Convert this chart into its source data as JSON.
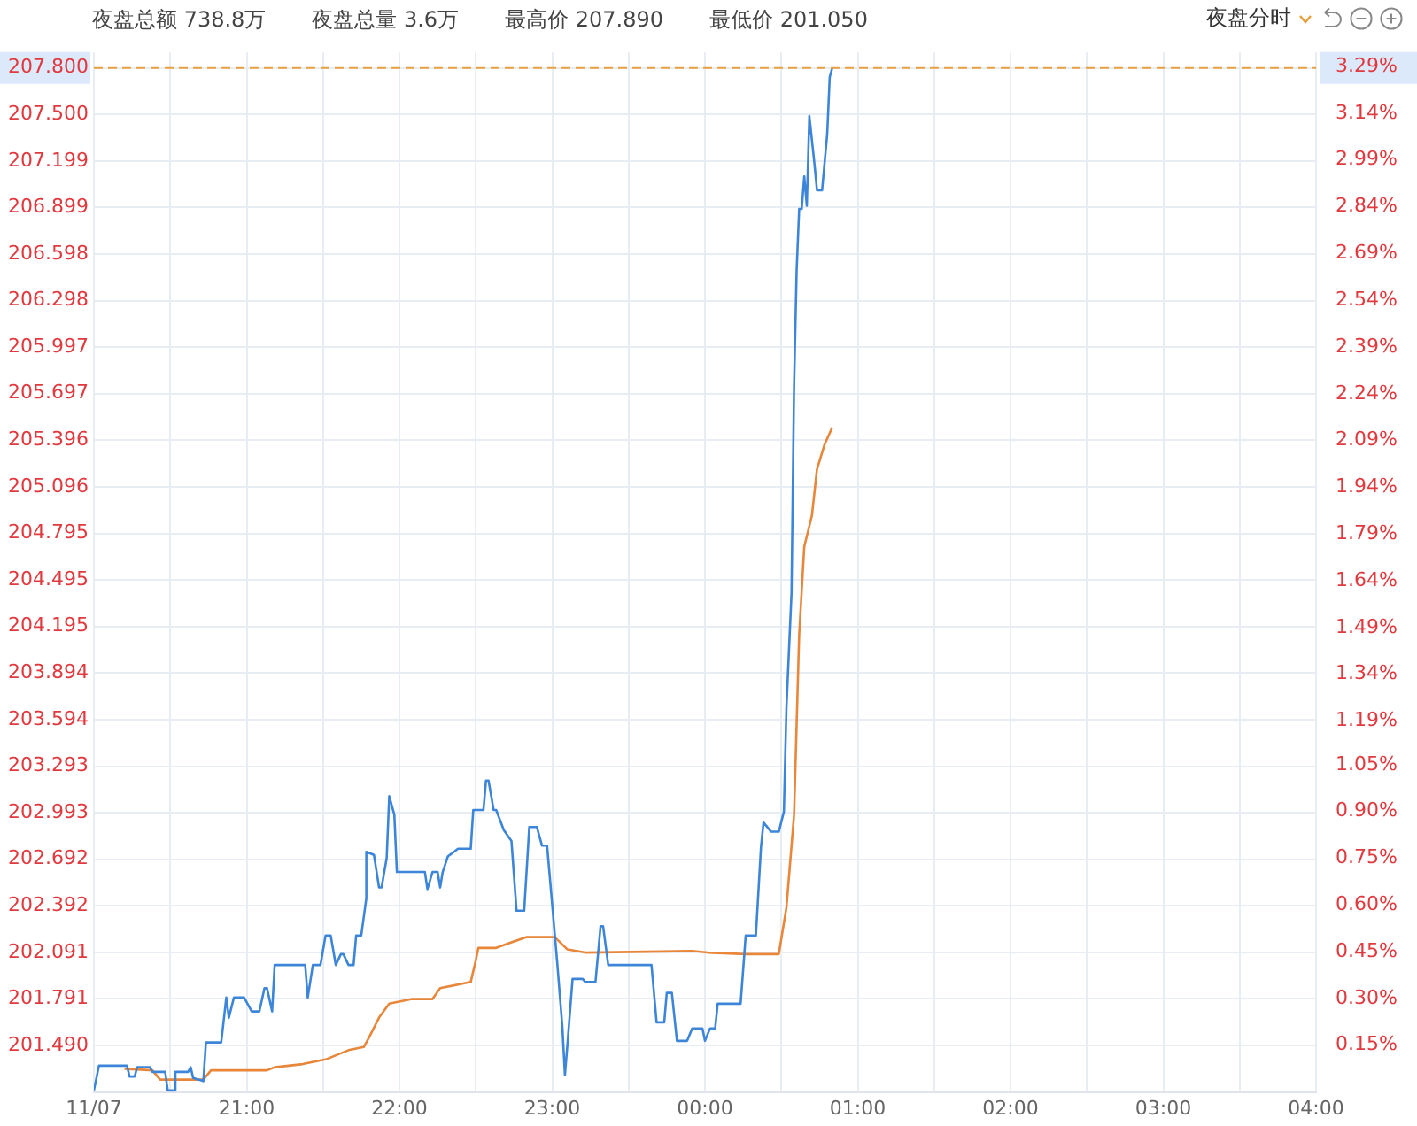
{
  "chart_data": {
    "type": "line",
    "annotations": [
      "夜盘总额 738.8万",
      "夜盘总量 3.6万",
      "最高价 207.890",
      "最低价 201.050",
      "夜盘分时"
    ],
    "xlim": [
      "--11-07T20:00",
      "--11-08T04:00"
    ],
    "xticks": [
      {
        "value": "--11-07T20:00",
        "label": "11/07"
      },
      {
        "value": "--11-07T20:30",
        "label": null
      },
      {
        "value": "--11-07T21:00",
        "label": "21:00"
      },
      {
        "value": "--11-07T21:30",
        "label": null
      },
      {
        "value": "--11-07T22:00",
        "label": "22:00"
      },
      {
        "value": "--11-07T22:30",
        "label": null
      },
      {
        "value": "--11-07T23:00",
        "label": "23:00"
      },
      {
        "value": "--11-07T23:30",
        "label": null
      },
      {
        "value": "--11-08T00:00",
        "label": "00:00"
      },
      {
        "value": "--11-08T00:30",
        "label": null
      },
      {
        "value": "--11-08T01:00",
        "label": "01:00"
      },
      {
        "value": "--11-08T01:30",
        "label": null
      },
      {
        "value": "--11-08T02:00",
        "label": "02:00"
      },
      {
        "value": "--11-08T02:30",
        "label": null
      },
      {
        "value": "--11-08T03:00",
        "label": "03:00"
      },
      {
        "value": "--11-08T03:30",
        "label": null
      },
      {
        "value": "--11-08T04:00",
        "label": "04:00"
      }
    ],
    "ylim": [
      201.19,
      207.9
    ],
    "yticks": [
      {
        "value": 201.49,
        "label": "201.490"
      },
      201.791,
      202.091,
      202.392,
      202.692,
      202.993,
      203.293,
      203.594,
      203.894,
      204.195,
      204.495,
      204.795,
      205.096,
      205.396,
      205.697,
      205.997,
      206.298,
      206.598,
      206.899,
      207.199,
      {
        "value": 207.5,
        "label": "207.500"
      },
      {
        "value": 207.8,
        "label": "207.800"
      }
    ],
    "y2lim": [
      0,
      3.335
    ],
    "y2ticks": [
      {
        "value": 0.15,
        "label": "0.15%"
      },
      {
        "value": 0.3,
        "label": "0.30%"
      },
      {
        "value": 0.45,
        "label": "0.45%"
      },
      {
        "value": 0.6,
        "label": "0.60%"
      },
      {
        "value": 0.75,
        "label": "0.75%"
      },
      {
        "value": 0.9,
        "label": "0.90%"
      },
      {
        "value": 1.05,
        "label": "1.05%"
      },
      {
        "value": 1.19,
        "label": "1.19%"
      },
      {
        "value": 1.34,
        "label": "1.34%"
      },
      {
        "value": 1.49,
        "label": "1.49%"
      },
      {
        "value": 1.64,
        "label": "1.64%"
      },
      {
        "value": 1.79,
        "label": "1.79%"
      },
      {
        "value": 1.94,
        "label": "1.94%"
      },
      {
        "value": 2.09,
        "label": "2.09%"
      },
      {
        "value": 2.24,
        "label": "2.24%"
      },
      {
        "value": 2.39,
        "label": "2.39%"
      },
      {
        "value": 2.54,
        "label": "2.54%"
      },
      {
        "value": 2.69,
        "label": "2.69%"
      },
      {
        "value": 2.84,
        "label": "2.84%"
      },
      {
        "value": 2.99,
        "label": "2.99%"
      },
      {
        "value": 3.14,
        "label": "3.14%"
      },
      {
        "value": 3.29,
        "label": "3.29%"
      }
    ],
    "grid": true,
    "legend": false,
    "marker": "none",
    "ref_lines": [
      {
        "axis": "y",
        "value": 207.8,
        "color": "#e8a040",
        "line_style": "dashed"
      }
    ],
    "series": [
      {
        "color": "#3d85d8",
        "x": [
          "--11-07T20:00",
          "--11-07T20:02",
          "--11-07T20:13",
          "--11-07T20:14",
          "--11-07T20:16",
          "--11-07T20:17",
          "--11-07T20:22",
          "--11-07T20:23",
          "--11-07T20:28",
          "--11-07T20:29",
          "--11-07T20:32",
          "--11-07T20:32",
          "--11-07T20:37",
          "--11-07T20:38",
          "--11-07T20:39",
          "--11-07T20:43",
          "--11-07T20:44",
          "--11-07T20:50",
          "--11-07T20:52",
          "--11-07T20:53",
          "--11-07T20:55",
          "--11-07T20:59",
          "--11-07T21:02",
          "--11-07T21:05",
          "--11-07T21:07",
          "--11-07T21:08",
          "--11-07T21:10",
          "--11-07T21:11",
          "--11-07T21:23",
          "--11-07T21:24",
          "--11-07T21:26",
          "--11-07T21:29",
          "--11-07T21:31",
          "--11-07T21:33",
          "--11-07T21:35",
          "--11-07T21:37",
          "--11-07T21:38",
          "--11-07T21:40",
          "--11-07T21:42",
          "--11-07T21:43",
          "--11-07T21:45",
          "--11-07T21:47",
          "--11-07T21:47",
          "--11-07T21:50",
          "--11-07T21:52",
          "--11-07T21:53",
          "--11-07T21:55",
          "--11-07T21:56",
          "--11-07T21:58",
          "--11-07T21:59",
          "--11-07T22:10",
          "--11-07T22:11",
          "--11-07T22:13",
          "--11-07T22:15",
          "--11-07T22:16",
          "--11-07T22:17",
          "--11-07T22:19",
          "--11-07T22:23",
          "--11-07T22:28",
          "--11-07T22:29",
          "--11-07T22:33",
          "--11-07T22:34",
          "--11-07T22:35",
          "--11-07T22:37",
          "--11-07T22:38",
          "--11-07T22:41",
          "--11-07T22:44",
          "--11-07T22:46",
          "--11-07T22:49",
          "--11-07T22:51",
          "--11-07T22:54",
          "--11-07T22:56",
          "--11-07T22:58",
          "--11-07T23:00",
          "--11-07T23:02",
          "--11-07T23:04",
          "--11-07T23:05",
          "--11-07T23:06",
          "--11-07T23:08",
          "--11-07T23:12",
          "--11-07T23:13",
          "--11-07T23:17",
          "--11-07T23:19",
          "--11-07T23:20",
          "--11-07T23:22",
          "--11-07T23:39",
          "--11-07T23:41",
          "--11-07T23:44",
          "--11-07T23:45",
          "--11-07T23:47",
          "--11-07T23:49",
          "--11-07T23:53",
          "--11-07T23:55",
          "--11-07T23:59",
          "--11-08T00:00",
          "--11-08T00:02",
          "--11-08T00:04",
          "--11-08T00:05",
          "--11-08T00:14",
          "--11-08T00:16",
          "--11-08T00:20",
          "--11-08T00:22",
          "--11-08T00:23",
          "--11-08T00:26",
          "--11-08T00:29",
          "--11-08T00:31",
          "--11-08T00:32",
          "--11-08T00:34",
          "--11-08T00:35",
          "--11-08T00:36",
          "--11-08T00:37",
          "--11-08T00:38",
          "--11-08T00:39",
          "--11-08T00:40",
          "--11-08T00:41",
          "--11-08T00:43",
          "--11-08T00:44",
          "--11-08T00:46",
          "--11-08T00:48",
          "--11-08T00:49",
          "--11-08T00:50"
        ],
        "values": [
          201.2,
          201.36,
          201.36,
          201.29,
          201.29,
          201.35,
          201.35,
          201.32,
          201.32,
          201.2,
          201.2,
          201.32,
          201.32,
          201.35,
          201.28,
          201.26,
          201.51,
          201.51,
          201.8,
          201.67,
          201.8,
          201.8,
          201.71,
          201.71,
          201.86,
          201.86,
          201.71,
          202.01,
          202.01,
          201.8,
          202.01,
          202.01,
          202.2,
          202.2,
          202.01,
          202.08,
          202.08,
          202.01,
          202.01,
          202.2,
          202.2,
          202.44,
          202.74,
          202.72,
          202.51,
          202.51,
          202.7,
          203.1,
          202.98,
          202.61,
          202.61,
          202.5,
          202.61,
          202.61,
          202.51,
          202.61,
          202.71,
          202.76,
          202.76,
          203.01,
          203.01,
          203.2,
          203.2,
          203.01,
          203.01,
          202.88,
          202.81,
          202.36,
          202.36,
          202.9,
          202.9,
          202.78,
          202.78,
          202.4,
          202.02,
          201.61,
          201.3,
          201.5,
          201.92,
          201.92,
          201.9,
          201.9,
          202.26,
          202.26,
          202.01,
          202.01,
          201.64,
          201.64,
          201.83,
          201.83,
          201.52,
          201.52,
          201.6,
          201.6,
          201.52,
          201.6,
          201.6,
          201.76,
          201.76,
          202.2,
          202.2,
          202.77,
          202.93,
          202.87,
          202.87,
          203.0,
          203.67,
          204.41,
          205.75,
          206.49,
          206.89,
          206.89,
          207.1,
          206.91,
          207.49,
          207.18,
          207.01,
          207.01,
          207.37,
          207.74,
          207.8
        ]
      },
      {
        "color": "#e8863a",
        "x": [
          "--11-07T20:12",
          "--11-07T20:23",
          "--11-07T20:26",
          "--11-07T20:43",
          "--11-07T20:46",
          "--11-07T21:08",
          "--11-07T21:11",
          "--11-07T21:22",
          "--11-07T21:31",
          "--11-07T21:40",
          "--11-07T21:46",
          "--11-07T21:48",
          "--11-07T21:52",
          "--11-07T21:56",
          "--11-07T22:05",
          "--11-07T22:13",
          "--11-07T22:16",
          "--11-07T22:28",
          "--11-07T22:30",
          "--11-07T22:31",
          "--11-07T22:38",
          "--11-07T22:43",
          "--11-07T22:50",
          "--11-07T23:01",
          "--11-07T23:06",
          "--11-07T23:13",
          "--11-07T23:55",
          "--11-08T00:01",
          "--11-08T00:16",
          "--11-08T00:29",
          "--11-08T00:32",
          "--11-08T00:35",
          "--11-08T00:37",
          "--11-08T00:39",
          "--11-08T00:42",
          "--11-08T00:44",
          "--11-08T00:47",
          "--11-08T00:50"
        ],
        "values": [
          201.34,
          201.33,
          201.27,
          201.27,
          201.33,
          201.33,
          201.35,
          201.37,
          201.4,
          201.46,
          201.48,
          201.54,
          201.67,
          201.76,
          201.79,
          201.79,
          201.86,
          201.9,
          202.04,
          202.12,
          202.12,
          202.15,
          202.19,
          202.19,
          202.11,
          202.09,
          202.1,
          202.09,
          202.08,
          202.08,
          202.38,
          202.98,
          204.14,
          204.71,
          204.91,
          205.21,
          205.37,
          205.48
        ]
      }
    ]
  }
}
